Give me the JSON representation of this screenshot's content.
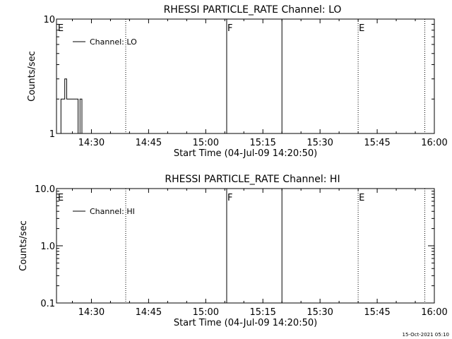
{
  "chart_data": [
    {
      "type": "line",
      "title": "RHESSI PARTICLE_RATE Channel: LO",
      "xlabel": "Start Time (04-Jul-09 14:20:50)",
      "ylabel": "Counts/sec",
      "yscale": "log",
      "ylim": [
        1,
        10
      ],
      "xlim": [
        "14:20:50",
        "16:00"
      ],
      "x_ticks": [
        "14:30",
        "14:45",
        "15:00",
        "15:15",
        "15:30",
        "15:45",
        "16:00"
      ],
      "y_ticks": [
        "1",
        "10"
      ],
      "legend": [
        "Channel: LO"
      ],
      "legend_position": "top-left",
      "grid": false,
      "series": [
        {
          "name": "Channel: LO",
          "x": [
            "14:21:00",
            "14:21:30",
            "14:22:00",
            "14:22:30",
            "14:23:00",
            "14:23:30",
            "14:24:00",
            "14:24:30",
            "14:25:00",
            "14:25:30",
            "14:26:00",
            "14:26:30",
            "14:27:00",
            "14:27:15",
            "14:27:30",
            "14:27:45",
            "14:28:00"
          ],
          "values": [
            1,
            1,
            2,
            2,
            3,
            2,
            2,
            2,
            2,
            2,
            2,
            1,
            2,
            2,
            1,
            1,
            1
          ]
        }
      ],
      "markers": [
        {
          "time": "14:21:00",
          "label": "E",
          "style": "none"
        },
        {
          "time": "14:39:00",
          "label": "",
          "style": "dotted"
        },
        {
          "time": "15:05:30",
          "label": "F",
          "style": "solid"
        },
        {
          "time": "15:20:00",
          "label": "",
          "style": "solid"
        },
        {
          "time": "15:40:00",
          "label": "E",
          "style": "dotted"
        },
        {
          "time": "15:57:30",
          "label": "",
          "style": "dotted"
        }
      ]
    },
    {
      "type": "line",
      "title": "RHESSI PARTICLE_RATE Channel: HI",
      "xlabel": "Start Time (04-Jul-09 14:20:50)",
      "ylabel": "Counts/sec",
      "yscale": "log",
      "ylim": [
        0.1,
        10
      ],
      "xlim": [
        "14:20:50",
        "16:00"
      ],
      "x_ticks": [
        "14:30",
        "14:45",
        "15:00",
        "15:15",
        "15:30",
        "15:45",
        "16:00"
      ],
      "y_ticks": [
        "0.1",
        "1.0",
        "10.0"
      ],
      "legend": [
        "Channel: HI"
      ],
      "legend_position": "top-left",
      "grid": false,
      "series": [
        {
          "name": "Channel: HI",
          "x": [],
          "values": []
        }
      ],
      "markers": [
        {
          "time": "14:21:00",
          "label": "E",
          "style": "none"
        },
        {
          "time": "14:39:00",
          "label": "",
          "style": "dotted"
        },
        {
          "time": "15:05:30",
          "label": "F",
          "style": "solid"
        },
        {
          "time": "15:20:00",
          "label": "",
          "style": "solid"
        },
        {
          "time": "15:40:00",
          "label": "E",
          "style": "dotted"
        },
        {
          "time": "15:57:30",
          "label": "",
          "style": "dotted"
        }
      ]
    }
  ],
  "footer": {
    "timestamp": "15-Oct-2021 05:10"
  }
}
